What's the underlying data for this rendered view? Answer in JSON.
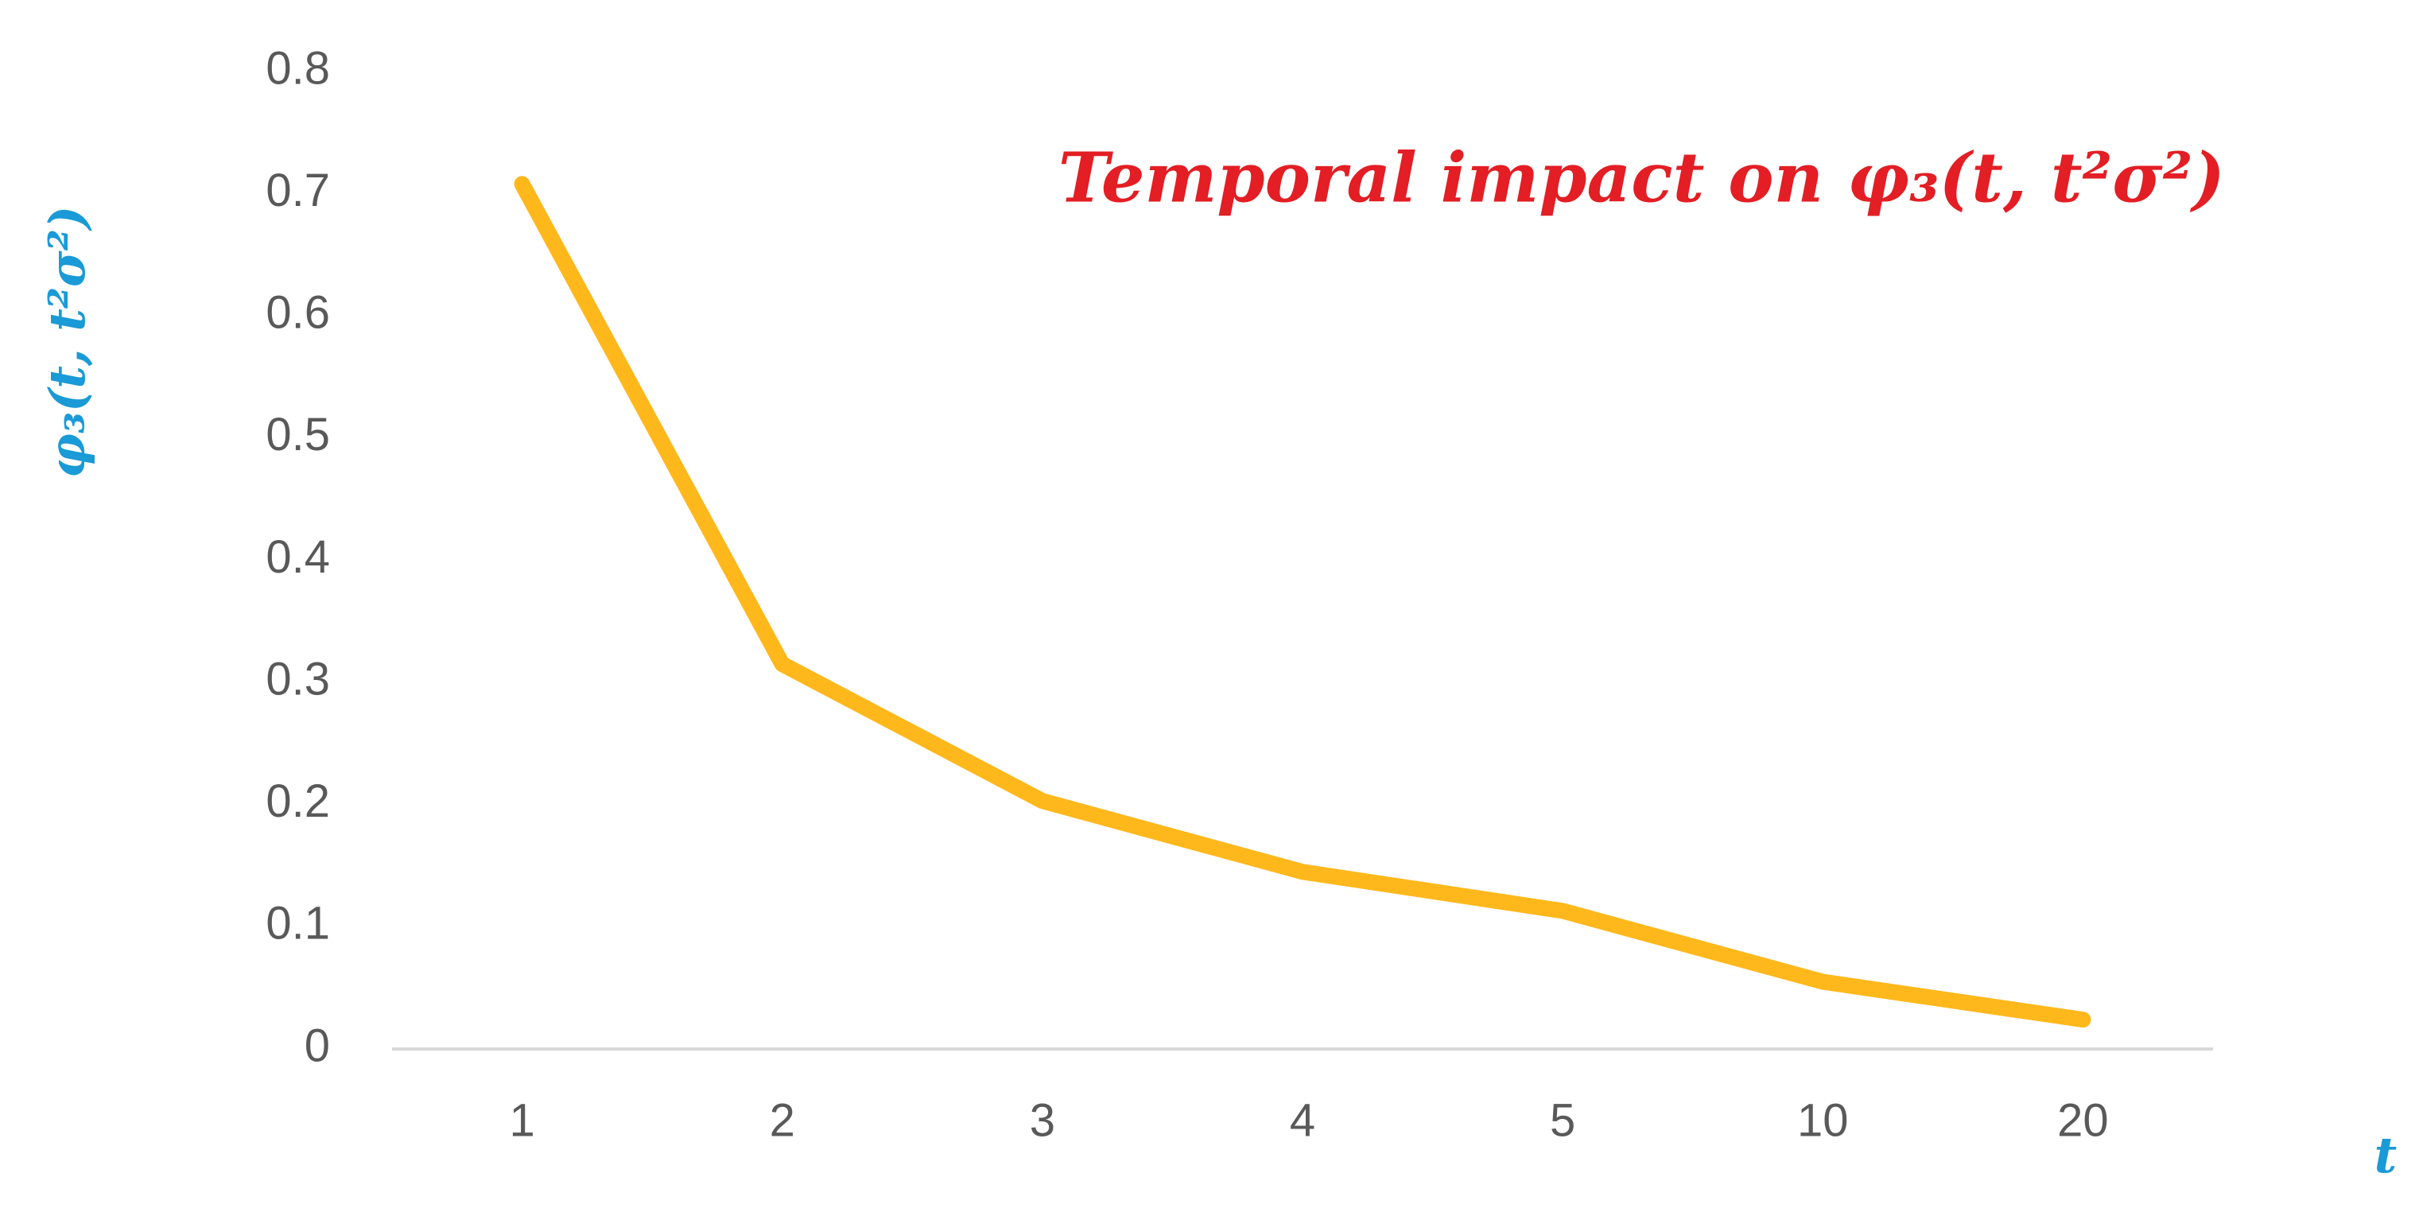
{
  "chart_data": {
    "type": "line",
    "title": "Temporal impact on φ₃(t, t²σ²)",
    "y_label": "φ₃(t, t²σ²)",
    "x_label": "t",
    "categories": [
      "1",
      "2",
      "3",
      "4",
      "5",
      "10",
      "20"
    ],
    "series": [
      {
        "name": "φ₃(t, t²σ²)",
        "color": "#ffb81c",
        "values": [
          0.708,
          0.315,
          0.203,
          0.145,
          0.113,
          0.055,
          0.024
        ]
      }
    ],
    "ylim": [
      0,
      0.8
    ],
    "yticks": [
      0,
      0.1,
      0.2,
      0.3,
      0.4,
      0.5,
      0.6,
      0.7,
      0.8
    ],
    "grid": false
  }
}
